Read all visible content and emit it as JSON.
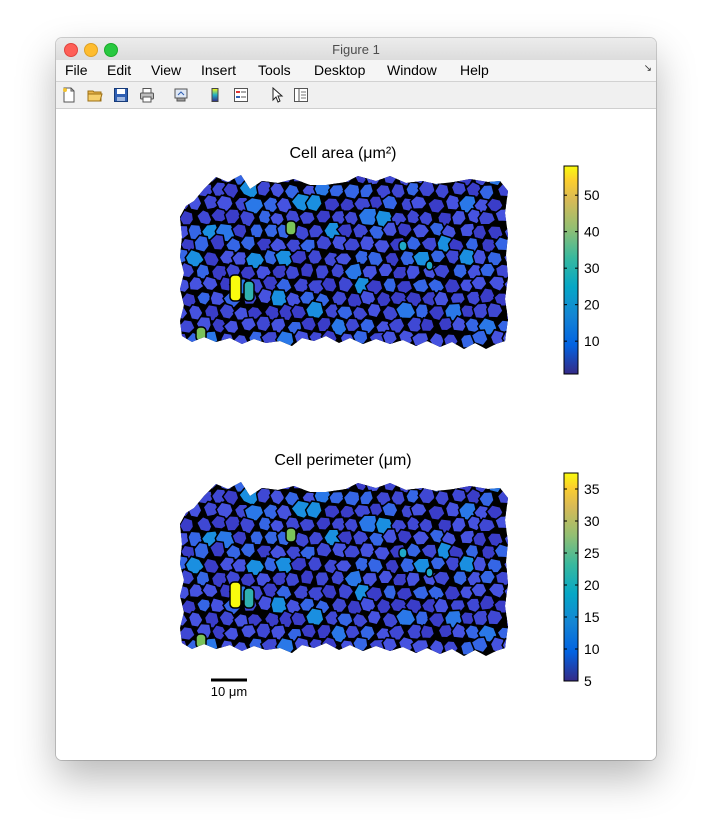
{
  "window": {
    "title": "Figure 1"
  },
  "menu": {
    "items": [
      "File",
      "Edit",
      "View",
      "Insert",
      "Tools",
      "Desktop",
      "Window",
      "Help"
    ]
  },
  "toolbar": {
    "icons": [
      "new-figure-icon",
      "open-folder-icon",
      "save-icon",
      "print-icon",
      "export-icon",
      "colorbar-icon",
      "legend-icon",
      "pointer-icon",
      "property-editor-icon"
    ]
  },
  "panels": {
    "area": {
      "title": "Cell area (μm²)",
      "colorbar": {
        "min": 1,
        "max": 58,
        "ticks": [
          10,
          20,
          30,
          40,
          50
        ],
        "tick_labels": [
          "10",
          "20",
          "30",
          "40",
          "50"
        ]
      }
    },
    "perimeter": {
      "title": "Cell perimeter (μm)",
      "colorbar": {
        "min": 5,
        "max": 37.5,
        "ticks": [
          5,
          10,
          15,
          20,
          25,
          30,
          35
        ],
        "tick_labels": [
          "5",
          "10",
          "15",
          "20",
          "25",
          "30",
          "35"
        ]
      }
    }
  },
  "scalebar": {
    "label": "10 μm"
  },
  "colors": {
    "colormap": "parula",
    "cell_edge": "#000000"
  }
}
